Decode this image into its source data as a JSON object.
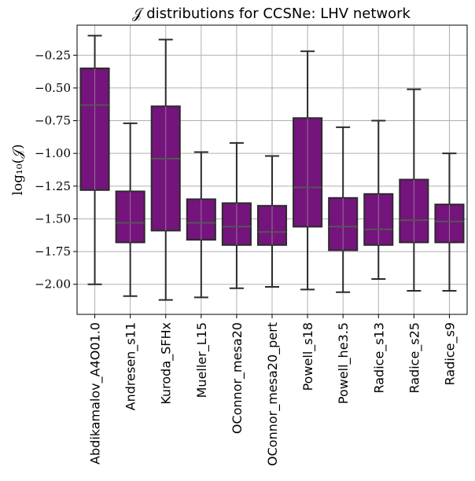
{
  "chart_data": {
    "type": "boxplot",
    "title": "𝒥 distributions for CCSNe: LHV network",
    "xlabel": "",
    "ylabel": "log₁₀(𝒥)",
    "ylim": [
      -2.23,
      -0.02
    ],
    "yticks": [
      -0.25,
      -0.5,
      -0.75,
      -1.0,
      -1.25,
      -1.5,
      -1.75,
      -2.0
    ],
    "ytick_labels": [
      "−0.25",
      "−0.50",
      "−0.75",
      "−1.00",
      "−1.25",
      "−1.50",
      "−1.75",
      "−2.00"
    ],
    "grid": true,
    "box_color": "#75147c",
    "edge_color": "#2b2b2b",
    "median_color": "#555555",
    "categories": [
      "Abdikamalov_A4O01.0",
      "Andresen_s11",
      "Kuroda_SFHx",
      "Mueller_L15",
      "OConnor_mesa20",
      "OConnor_mesa20_pert",
      "Powell_s18",
      "Powell_he3.5",
      "Radice_s13",
      "Radice_s25",
      "Radice_s9"
    ],
    "category_labels": [
      "Abdikamalov_A4O01.0",
      "Andresen_s11",
      "Kuroda_SFHx",
      "Mueller_L15",
      "OConnor_mesa20",
      "OConnor_mesa20_pert",
      "Powell_s18",
      "Powell_he3.5",
      "Radice_s13",
      "Radice_s25",
      "Radice_s9"
    ],
    "boxes": [
      {
        "name": "Abdikamalov_A4O01.0",
        "whisker_low": -2.0,
        "q1": -1.28,
        "median": -0.63,
        "q3": -0.35,
        "whisker_high": -0.1
      },
      {
        "name": "Andresen_s11",
        "whisker_low": -2.09,
        "q1": -1.68,
        "median": -1.53,
        "q3": -1.29,
        "whisker_high": -0.77
      },
      {
        "name": "Kuroda_SFHx",
        "whisker_low": -2.12,
        "q1": -1.59,
        "median": -1.04,
        "q3": -0.64,
        "whisker_high": -0.13
      },
      {
        "name": "Mueller_L15",
        "whisker_low": -2.1,
        "q1": -1.66,
        "median": -1.53,
        "q3": -1.35,
        "whisker_high": -0.99
      },
      {
        "name": "OConnor_mesa20",
        "whisker_low": -2.03,
        "q1": -1.7,
        "median": -1.56,
        "q3": -1.38,
        "whisker_high": -0.92
      },
      {
        "name": "OConnor_mesa20_pert",
        "whisker_low": -2.02,
        "q1": -1.7,
        "median": -1.6,
        "q3": -1.4,
        "whisker_high": -1.02
      },
      {
        "name": "Powell_s18",
        "whisker_low": -2.04,
        "q1": -1.56,
        "median": -1.26,
        "q3": -0.73,
        "whisker_high": -0.22
      },
      {
        "name": "Powell_he3.5",
        "whisker_low": -2.06,
        "q1": -1.74,
        "median": -1.56,
        "q3": -1.34,
        "whisker_high": -0.8
      },
      {
        "name": "Radice_s13",
        "whisker_low": -1.96,
        "q1": -1.7,
        "median": -1.58,
        "q3": -1.31,
        "whisker_high": -0.75
      },
      {
        "name": "Radice_s25",
        "whisker_low": -2.05,
        "q1": -1.68,
        "median": -1.51,
        "q3": -1.2,
        "whisker_high": -0.51
      },
      {
        "name": "Radice_s9",
        "whisker_low": -2.05,
        "q1": -1.68,
        "median": -1.52,
        "q3": -1.39,
        "whisker_high": -1.0
      }
    ]
  }
}
